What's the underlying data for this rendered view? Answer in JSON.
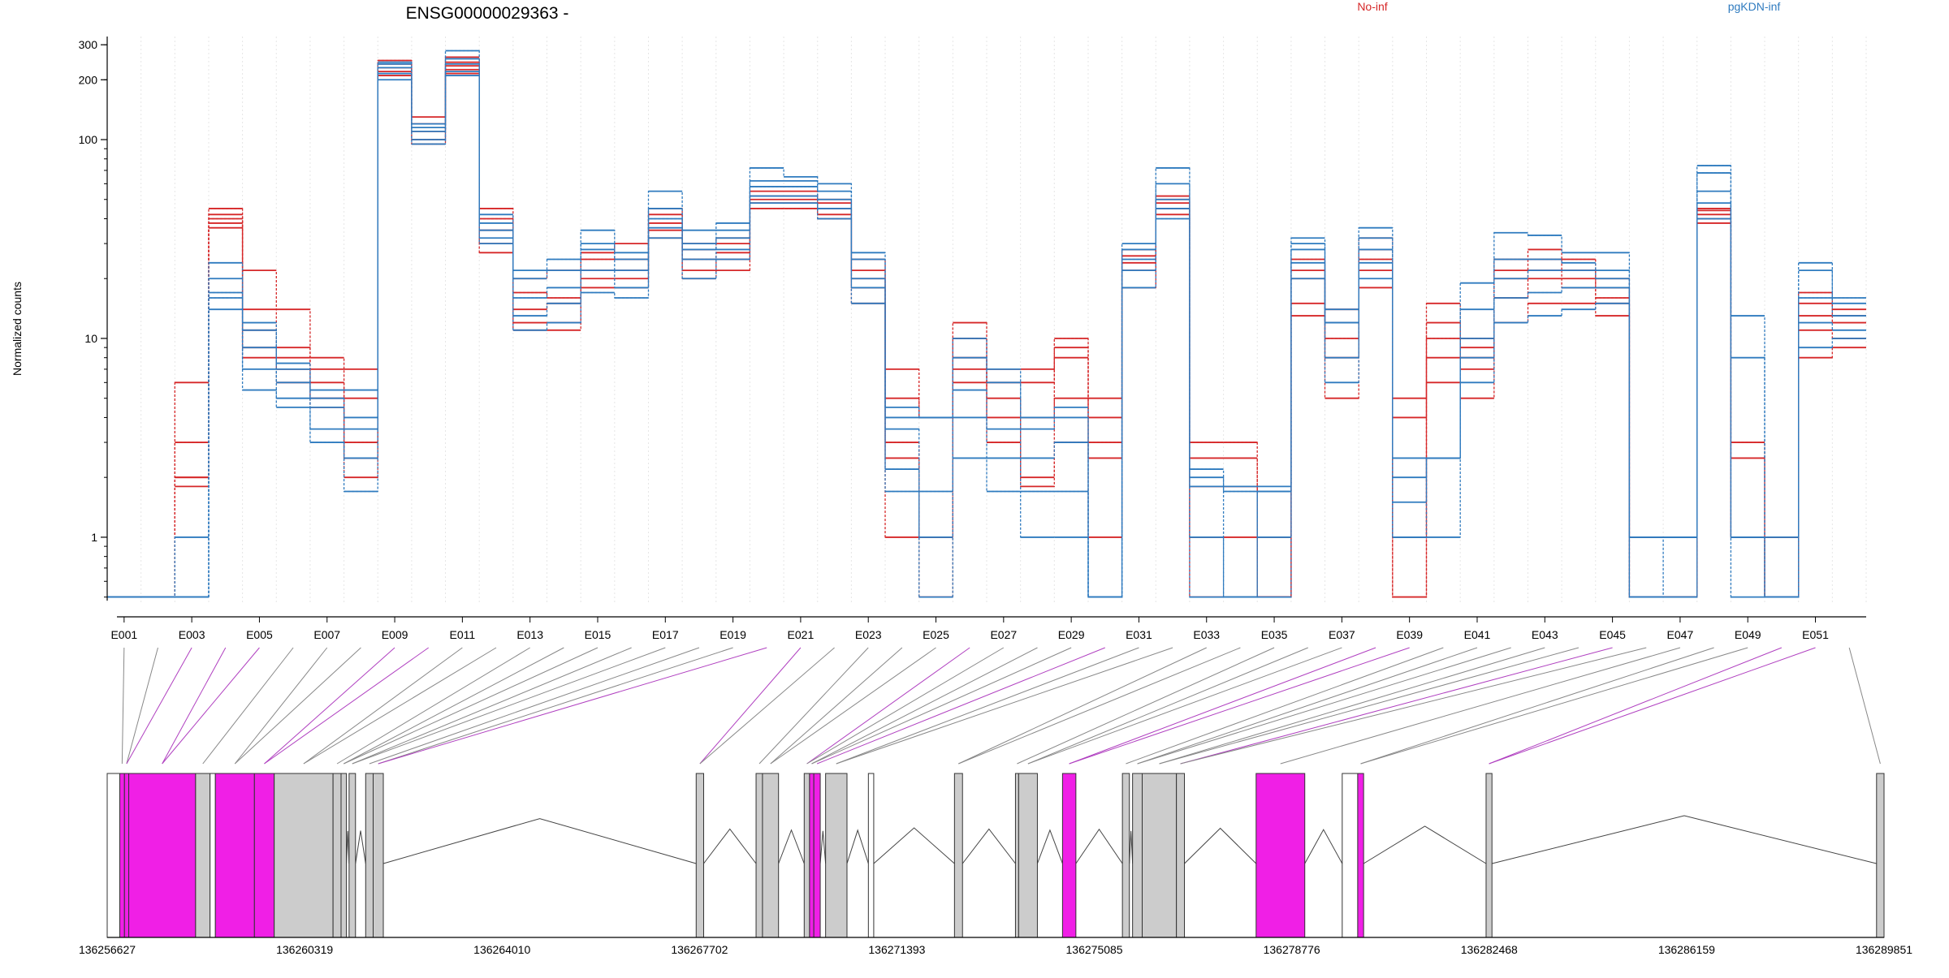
{
  "chart_data": {
    "type": "line",
    "title": "ENSG00000029363 -",
    "ylabel": "Normalized counts",
    "xlabel": "",
    "yscale": "log",
    "ylim": [
      0.48,
      330
    ],
    "yticks": [
      1,
      10,
      100,
      200,
      300
    ],
    "grid": true,
    "legend_placement": "top",
    "colors": {
      "No-inf": "#d62728",
      "pgKDN-inf": "#2f7bbf",
      "exon_highlight": "#f01fe6",
      "exon": "#cccccc"
    },
    "categories": [
      "E001",
      "E002",
      "E003",
      "E004",
      "E005",
      "E006",
      "E007",
      "E008",
      "E009",
      "E010",
      "E011",
      "E012",
      "E013",
      "E014",
      "E015",
      "E016",
      "E017",
      "E018",
      "E019",
      "E020",
      "E021",
      "E022",
      "E023",
      "E024",
      "E025",
      "E026",
      "E027",
      "E028",
      "E029",
      "E030",
      "E031",
      "E032",
      "E033",
      "E034",
      "E035",
      "E036",
      "E037",
      "E038",
      "E039",
      "E040",
      "E041",
      "E042",
      "E043",
      "E044",
      "E045",
      "E046",
      "E047",
      "E048",
      "E049",
      "E050",
      "E051",
      "E052"
    ],
    "tick_labels": [
      "E001",
      "E003",
      "E005",
      "E007",
      "E009",
      "E011",
      "E013",
      "E015",
      "E017",
      "E019",
      "E021",
      "E023",
      "E025",
      "E027",
      "E029",
      "E031",
      "E033",
      "E035",
      "E037",
      "E039",
      "E041",
      "E043",
      "E045",
      "E047",
      "E049",
      "E051"
    ],
    "highlighted_exons": [
      "E003",
      "E004",
      "E005",
      "E009",
      "E010",
      "E020",
      "E021",
      "E026",
      "E030",
      "E038",
      "E039",
      "E045",
      "E050",
      "E051"
    ],
    "series": [
      {
        "group": "No-inf",
        "values": [
          0.5,
          0.5,
          6,
          45,
          22,
          14,
          8,
          7,
          250,
          130,
          260,
          45,
          20,
          22,
          27,
          30,
          45,
          30,
          32,
          55,
          55,
          50,
          25,
          7,
          4,
          12,
          7,
          7,
          10,
          5,
          28,
          52,
          3,
          3,
          1,
          25,
          14,
          32,
          5,
          15,
          10,
          25,
          28,
          25,
          20,
          1,
          1,
          45,
          3,
          1,
          17,
          14
        ]
      },
      {
        "group": "No-inf",
        "values": [
          0.5,
          0.5,
          3,
          42,
          14,
          9,
          7,
          5,
          240,
          120,
          245,
          40,
          17,
          16,
          25,
          25,
          42,
          28,
          30,
          52,
          52,
          48,
          22,
          5,
          4,
          10,
          6,
          6,
          9,
          4,
          26,
          50,
          2.5,
          2.5,
          0.5,
          22,
          12,
          28,
          4,
          12,
          9,
          22,
          25,
          22,
          18,
          1,
          1,
          44,
          2.5,
          1,
          15,
          13
        ]
      },
      {
        "group": "No-inf",
        "values": [
          0.5,
          0.5,
          2,
          40,
          11,
          8,
          6,
          3,
          230,
          110,
          235,
          35,
          14,
          15,
          22,
          22,
          38,
          25,
          27,
          50,
          50,
          45,
          20,
          3,
          1,
          8,
          5,
          4,
          8,
          3,
          24,
          48,
          1.8,
          1.8,
          0.5,
          20,
          10,
          25,
          1,
          10,
          8,
          20,
          22,
          20,
          16,
          0.5,
          0.5,
          42,
          1,
          0.5,
          13,
          12
        ]
      },
      {
        "group": "No-inf",
        "values": [
          0.5,
          0.5,
          2,
          38,
          9,
          7,
          5,
          2.5,
          220,
          100,
          225,
          30,
          12,
          12,
          20,
          20,
          35,
          22,
          25,
          48,
          48,
          42,
          18,
          2.5,
          1,
          7,
          4,
          2,
          5,
          2.5,
          22,
          45,
          1,
          1,
          0.5,
          15,
          8,
          22,
          0.5,
          8,
          7,
          16,
          20,
          18,
          15,
          0.5,
          0.5,
          40,
          1,
          0.5,
          11,
          10
        ]
      },
      {
        "group": "No-inf",
        "values": [
          0.5,
          0.5,
          1.8,
          36,
          8,
          6,
          4.5,
          2,
          210,
          95,
          215,
          27,
          11,
          11,
          18,
          18,
          32,
          20,
          22,
          45,
          45,
          40,
          15,
          1,
          0.5,
          6,
          3,
          1.8,
          3,
          1,
          18,
          42,
          0.5,
          0.5,
          0.5,
          13,
          5,
          18,
          0.5,
          6,
          5,
          12,
          15,
          15,
          13,
          0.5,
          0.5,
          38,
          1,
          0.5,
          8,
          9
        ]
      },
      {
        "group": "pgKDN-inf",
        "values": [
          0.5,
          0.5,
          0.5,
          14,
          5.5,
          4.5,
          3,
          1.7,
          200,
          95,
          210,
          30,
          11,
          12,
          17,
          16,
          32,
          20,
          25,
          48,
          48,
          40,
          15,
          1.7,
          0.5,
          2.5,
          1.7,
          1,
          1,
          0.5,
          18,
          40,
          0.5,
          0.5,
          0.5,
          20,
          6,
          20,
          1,
          1,
          6,
          12,
          13,
          14,
          15,
          0.5,
          0.5,
          40,
          0.5,
          0.5,
          9,
          10
        ]
      },
      {
        "group": "pgKDN-inf",
        "values": [
          0.5,
          0.5,
          1,
          17,
          7,
          5,
          3.5,
          2.5,
          215,
          100,
          220,
          32,
          13,
          15,
          22,
          18,
          36,
          25,
          28,
          52,
          52,
          45,
          18,
          2.2,
          1,
          4,
          2.5,
          1.7,
          1.7,
          0.5,
          22,
          45,
          1,
          0.5,
          1.7,
          24,
          8,
          24,
          1,
          2.5,
          8,
          16,
          17,
          18,
          18,
          0.5,
          1,
          48,
          1,
          0.5,
          12,
          11
        ]
      },
      {
        "group": "pgKDN-inf",
        "values": [
          0.5,
          0.5,
          0.5,
          20,
          9,
          6,
          4.5,
          3.5,
          230,
          110,
          240,
          35,
          16,
          18,
          28,
          22,
          40,
          28,
          32,
          58,
          58,
          50,
          20,
          3.5,
          1.7,
          5.5,
          3.5,
          2.5,
          3,
          0.5,
          25,
          50,
          1.8,
          1.8,
          1.8,
          28,
          12,
          28,
          1.5,
          2.5,
          10,
          20,
          22,
          22,
          20,
          1,
          1,
          55,
          1,
          1,
          16,
          13
        ]
      },
      {
        "group": "pgKDN-inf",
        "values": [
          0.5,
          0.5,
          0.5,
          24,
          11,
          7,
          5,
          4,
          240,
          115,
          255,
          38,
          20,
          22,
          30,
          25,
          45,
          30,
          35,
          62,
          62,
          55,
          25,
          4,
          4,
          8,
          6,
          3.5,
          4,
          0.5,
          28,
          60,
          2,
          1.7,
          1,
          30,
          14,
          32,
          2.5,
          2.5,
          14,
          25,
          25,
          24,
          22,
          0.5,
          0.5,
          68,
          8,
          0.5,
          22,
          15
        ]
      },
      {
        "group": "pgKDN-inf",
        "values": [
          0.5,
          0.5,
          0.5,
          16,
          12,
          7.5,
          5.5,
          5.5,
          245,
          120,
          280,
          42,
          22,
          25,
          35,
          27,
          55,
          35,
          38,
          72,
          65,
          60,
          27,
          4.5,
          4,
          10,
          7,
          4,
          4.5,
          0.5,
          30,
          72,
          2.2,
          0.5,
          1.7,
          32,
          12,
          36,
          2,
          2.5,
          19,
          34,
          33,
          27,
          27,
          1,
          1,
          74,
          13,
          0.5,
          24,
          16
        ]
      }
    ],
    "gene_model": {
      "type": "gene_model",
      "xlim": [
        136256627,
        136289851
      ],
      "tick_labels": [
        "136256627",
        "136260319",
        "136264010",
        "136267702",
        "136271393",
        "136275085",
        "136278776",
        "136282468",
        "136286159",
        "136289851"
      ],
      "tick_values": [
        136256627,
        136260319,
        136264010,
        136267702,
        136271393,
        136275085,
        136278776,
        136282468,
        136286159,
        136289851
      ],
      "exons": [
        {
          "start": 136256627,
          "end": 136256862,
          "color": "white"
        },
        {
          "start": 136256862,
          "end": 136256950,
          "color": "magenta"
        },
        {
          "start": 136256950,
          "end": 136257030,
          "color": "magenta"
        },
        {
          "start": 136257030,
          "end": 136258280,
          "color": "magenta"
        },
        {
          "start": 136258280,
          "end": 136258550,
          "color": "grey"
        },
        {
          "start": 136258550,
          "end": 136258650,
          "color": "white"
        },
        {
          "start": 136258650,
          "end": 136259380,
          "color": "magenta"
        },
        {
          "start": 136259380,
          "end": 136259750,
          "color": "magenta"
        },
        {
          "start": 136259750,
          "end": 136260850,
          "color": "grey"
        },
        {
          "start": 136260850,
          "end": 136261000,
          "color": "grey"
        },
        {
          "start": 136261000,
          "end": 136261100,
          "color": "grey"
        },
        {
          "start": 136261150,
          "end": 136261270,
          "color": "grey"
        },
        {
          "start": 136261460,
          "end": 136261600,
          "color": "grey"
        },
        {
          "start": 136261600,
          "end": 136261790,
          "color": "grey"
        },
        {
          "start": 136267640,
          "end": 136267780,
          "color": "grey"
        },
        {
          "start": 136268760,
          "end": 136268880,
          "color": "grey"
        },
        {
          "start": 136268880,
          "end": 136269180,
          "color": "grey"
        },
        {
          "start": 136269660,
          "end": 136269760,
          "color": "grey"
        },
        {
          "start": 136269760,
          "end": 136269840,
          "color": "magenta"
        },
        {
          "start": 136269840,
          "end": 136269960,
          "color": "magenta"
        },
        {
          "start": 136270060,
          "end": 136270460,
          "color": "grey"
        },
        {
          "start": 136270860,
          "end": 136270960,
          "color": "white"
        },
        {
          "start": 136272470,
          "end": 136272620,
          "color": "grey"
        },
        {
          "start": 136273610,
          "end": 136273670,
          "color": "grey"
        },
        {
          "start": 136273670,
          "end": 136274020,
          "color": "grey"
        },
        {
          "start": 136274490,
          "end": 136274740,
          "color": "magenta"
        },
        {
          "start": 136275610,
          "end": 136275740,
          "color": "grey"
        },
        {
          "start": 136275800,
          "end": 136275980,
          "color": "grey"
        },
        {
          "start": 136275980,
          "end": 136276620,
          "color": "grey"
        },
        {
          "start": 136276620,
          "end": 136276770,
          "color": "grey"
        },
        {
          "start": 136278110,
          "end": 136279020,
          "color": "magenta"
        },
        {
          "start": 136279720,
          "end": 136280010,
          "color": "white"
        },
        {
          "start": 136280010,
          "end": 136280120,
          "color": "magenta"
        },
        {
          "start": 136282410,
          "end": 136282520,
          "color": "grey"
        },
        {
          "start": 136289711,
          "end": 136289851,
          "color": "grey"
        }
      ]
    }
  },
  "legend": {
    "no_inf": "No-inf",
    "pgkdn_inf": "pgKDN-inf"
  }
}
